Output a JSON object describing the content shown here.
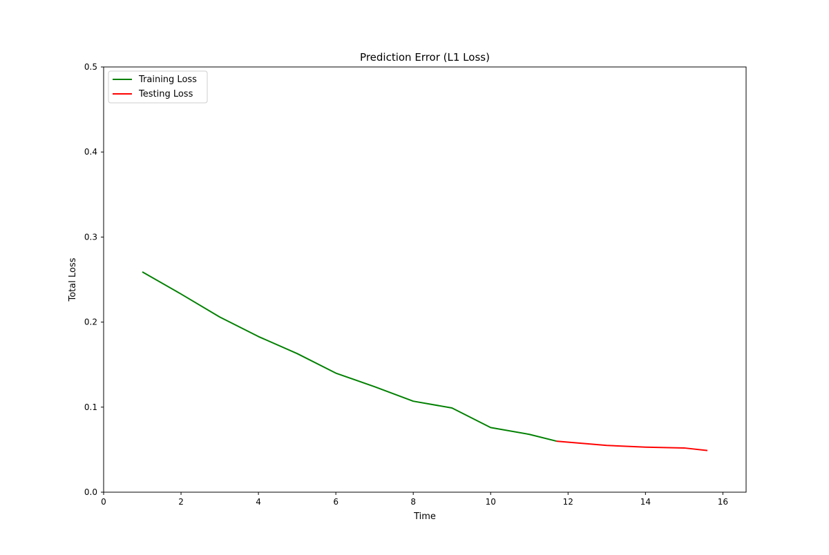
{
  "chart_data": {
    "type": "line",
    "title": "Prediction Error (L1 Loss)",
    "xlabel": "Time",
    "ylabel": "Total Loss",
    "xlim": [
      0,
      16.6
    ],
    "ylim": [
      0,
      0.5
    ],
    "xticks": [
      0,
      2,
      4,
      6,
      8,
      10,
      12,
      14,
      16
    ],
    "yticks": [
      0.0,
      0.1,
      0.2,
      0.3,
      0.4,
      0.5
    ],
    "xtick_labels": [
      "0",
      "2",
      "4",
      "6",
      "8",
      "10",
      "12",
      "14",
      "16"
    ],
    "ytick_labels": [
      "0.0",
      "0.1",
      "0.2",
      "0.3",
      "0.4",
      "0.5"
    ],
    "grid": false,
    "legend_position": "top-left",
    "series": [
      {
        "name": "Training Loss",
        "color": "#008000",
        "x": [
          1,
          2,
          3,
          4,
          5,
          6,
          7,
          8,
          9,
          10,
          11,
          11.7
        ],
        "y": [
          0.259,
          0.233,
          0.206,
          0.183,
          0.163,
          0.14,
          0.124,
          0.107,
          0.099,
          0.076,
          0.068,
          0.06
        ]
      },
      {
        "name": "Testing Loss",
        "color": "#ff0000",
        "x": [
          11.7,
          13,
          14,
          15,
          15.6
        ],
        "y": [
          0.06,
          0.055,
          0.053,
          0.052,
          0.049
        ]
      }
    ]
  }
}
